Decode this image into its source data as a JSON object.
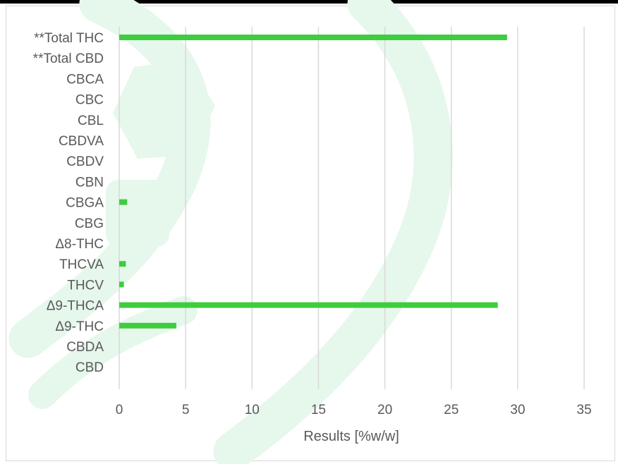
{
  "chart_data": {
    "type": "bar",
    "orientation": "horizontal",
    "title": "",
    "xlabel": "Results [%w/w]",
    "ylabel": "",
    "xlim": [
      0,
      35
    ],
    "xticks": [
      0,
      5,
      10,
      15,
      20,
      25,
      30,
      35
    ],
    "grid": "vertical",
    "legend": "none",
    "categories": [
      "**Total THC",
      "**Total CBD",
      "CBCA",
      "CBC",
      "CBL",
      "CBDVA",
      "CBDV",
      "CBN",
      "CBGA",
      "CBG",
      "Δ8-THC",
      "THCVA",
      "THCV",
      "Δ9-THCA",
      "Δ9-THC",
      "CBDA",
      "CBD"
    ],
    "values": [
      29.2,
      0,
      0,
      0,
      0,
      0,
      0,
      0,
      0.6,
      0,
      0,
      0.5,
      0.35,
      28.5,
      4.3,
      0,
      0
    ],
    "bar_color": "#3fcc3f"
  },
  "colors": {
    "gridline": "#d9d9d9",
    "axis_text": "#595959",
    "watermark": "#e6f7ec"
  }
}
